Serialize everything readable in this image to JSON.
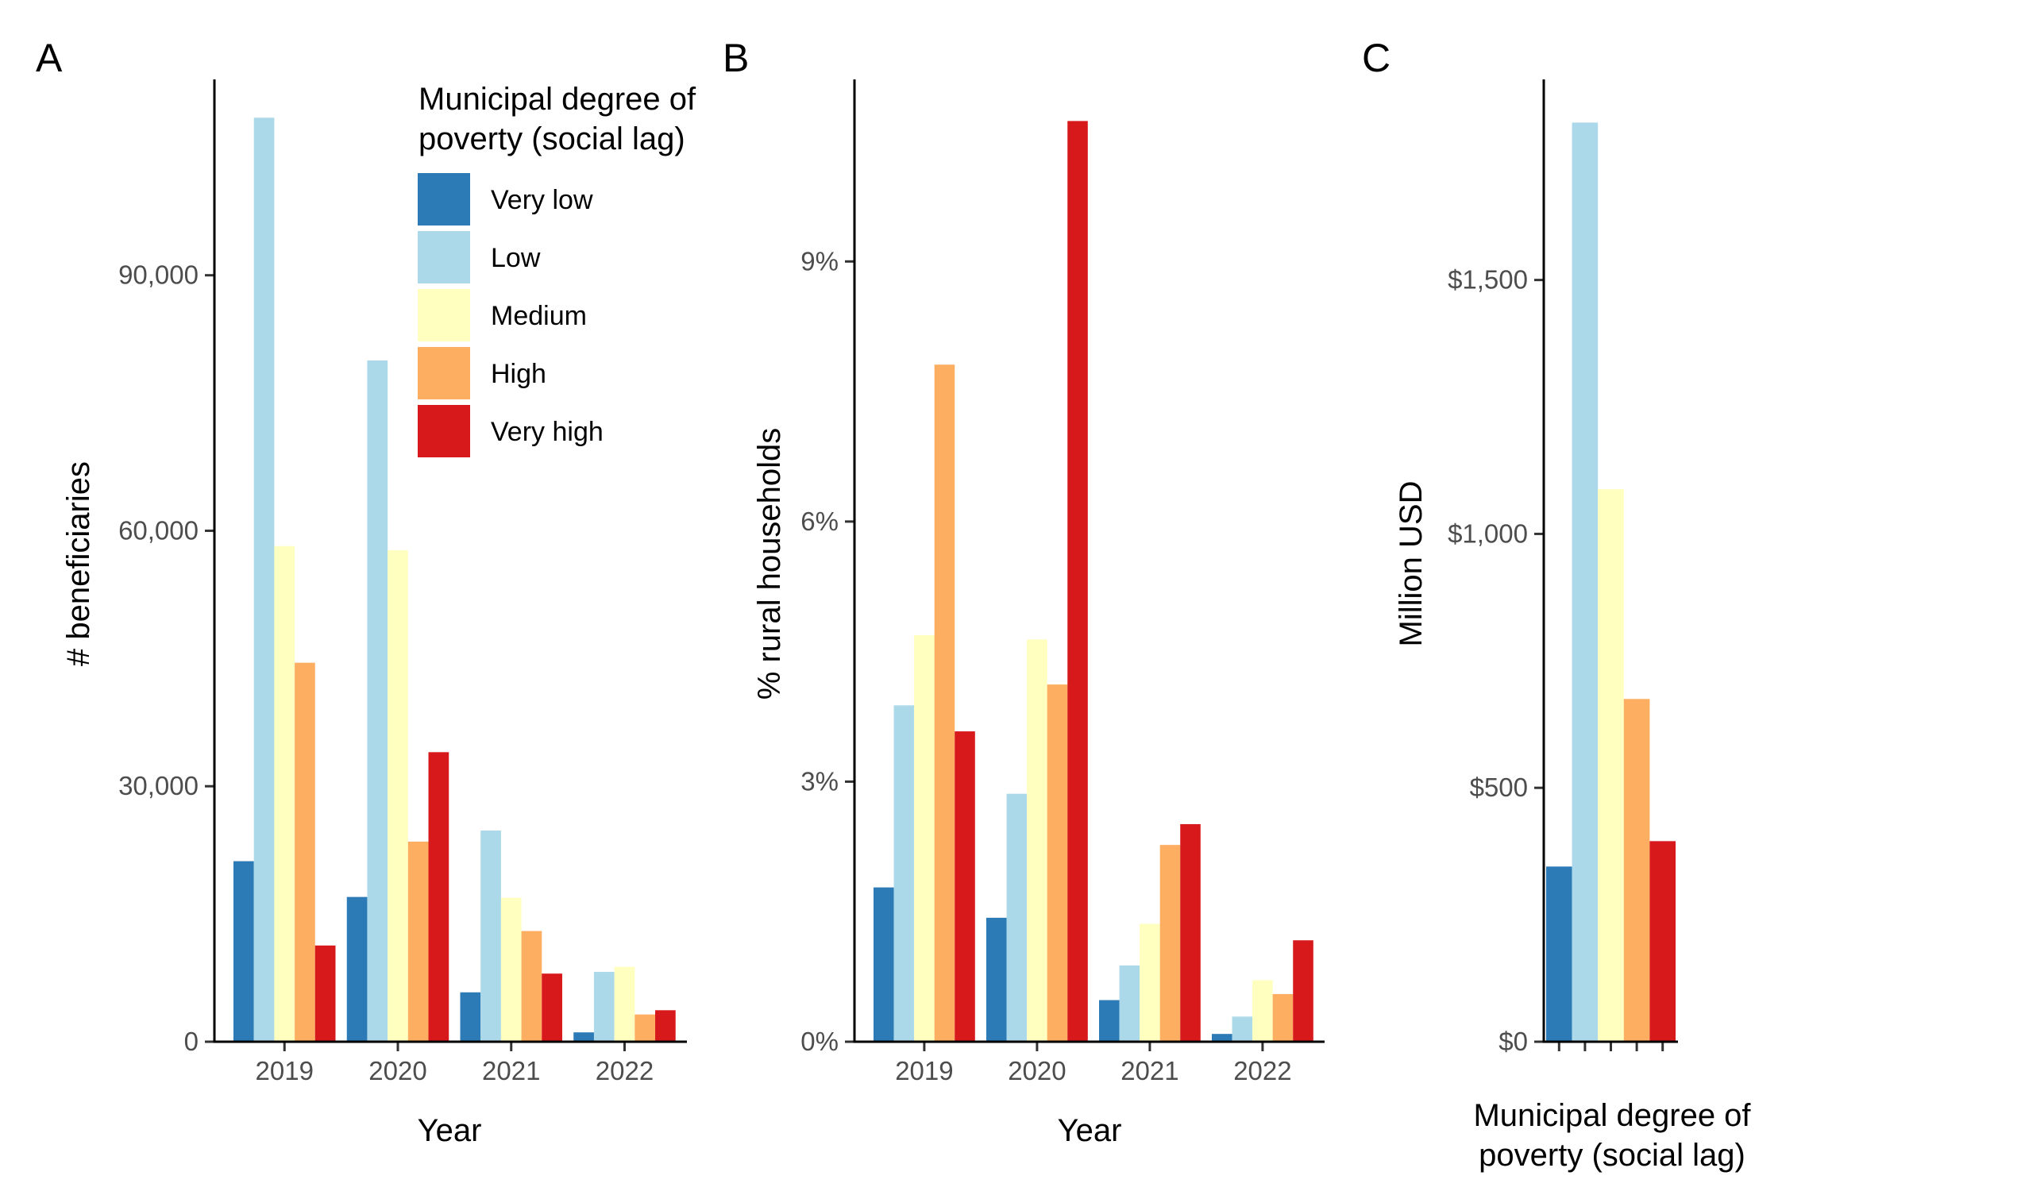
{
  "colors": {
    "very_low": "#2c7bb6",
    "low": "#abd9e9",
    "medium": "#ffffbf",
    "high": "#fdae61",
    "very_high": "#d7191c"
  },
  "legend": {
    "title_line1": "Municipal degree of",
    "title_line2": "poverty (social lag)",
    "entries": [
      "Very low",
      "Low",
      "Medium",
      "High",
      "Very high"
    ]
  },
  "chart_data": [
    {
      "panel": "A",
      "type": "bar",
      "xlabel": "Year",
      "ylabel": "# beneficiaries",
      "categories": [
        "2019",
        "2020",
        "2021",
        "2022"
      ],
      "ylim": [
        0,
        113000
      ],
      "yticks": [
        0,
        30000,
        60000,
        90000
      ],
      "ytick_labels": [
        "0",
        "30,000",
        "60,000",
        "90,000"
      ],
      "series": [
        {
          "name": "Very low",
          "values": [
            21200,
            17000,
            5800,
            1100
          ]
        },
        {
          "name": "Low",
          "values": [
            108500,
            80000,
            24800,
            8200
          ]
        },
        {
          "name": "Medium",
          "values": [
            58200,
            57700,
            16900,
            8800
          ]
        },
        {
          "name": "High",
          "values": [
            44500,
            23500,
            13000,
            3200
          ]
        },
        {
          "name": "Very high",
          "values": [
            11300,
            34000,
            8000,
            3700
          ]
        }
      ]
    },
    {
      "panel": "B",
      "type": "bar",
      "xlabel": "Year",
      "ylabel": "% rural households",
      "categories": [
        "2019",
        "2020",
        "2021",
        "2022"
      ],
      "ylim": [
        0,
        11.1
      ],
      "yticks": [
        0,
        3,
        6,
        9
      ],
      "ytick_labels": [
        "0%",
        "3%",
        "6%",
        "9%"
      ],
      "series": [
        {
          "name": "Very low",
          "values": [
            1.78,
            1.43,
            0.48,
            0.09
          ]
        },
        {
          "name": "Low",
          "values": [
            3.88,
            2.86,
            0.88,
            0.29
          ]
        },
        {
          "name": "Medium",
          "values": [
            4.69,
            4.64,
            1.36,
            0.71
          ]
        },
        {
          "name": "High",
          "values": [
            7.81,
            4.12,
            2.27,
            0.55
          ]
        },
        {
          "name": "Very high",
          "values": [
            3.58,
            10.62,
            2.51,
            1.17
          ]
        }
      ]
    },
    {
      "panel": "C",
      "type": "bar",
      "xlabel_line1": "Municipal degree of",
      "xlabel_line2": "poverty (social lag)",
      "ylabel": "Million USD",
      "categories": [
        "Very low",
        "Low",
        "Medium",
        "High",
        "Very high"
      ],
      "ylim": [
        0,
        1895
      ],
      "yticks": [
        0,
        500,
        1000,
        1500
      ],
      "ytick_labels": [
        "$0",
        "$500",
        "$1,000",
        "$1,500"
      ],
      "values": [
        345,
        1810,
        1088,
        675,
        395
      ]
    }
  ]
}
